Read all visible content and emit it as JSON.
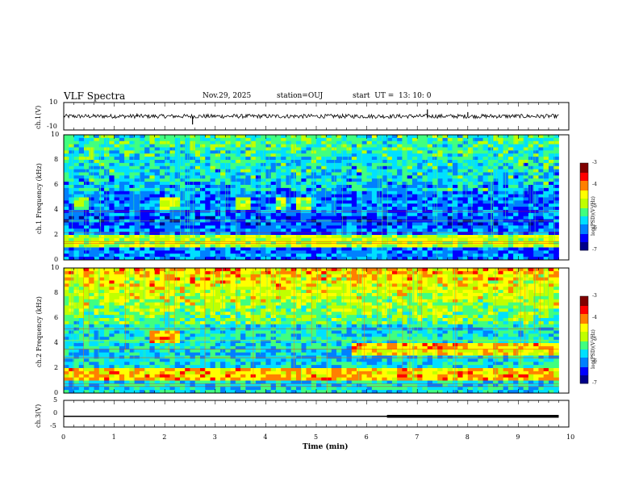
{
  "header": {
    "title": "VLF Spectra",
    "date": "Nov.29, 2025",
    "station": "station=OUJ",
    "start_label": "start  UT =",
    "start_time": "13: 10: 0"
  },
  "chart_data": [
    {
      "type": "line",
      "name": "ch1-waveform",
      "ylabel": "ch.1(V)",
      "ylim": [
        -10,
        10
      ],
      "yticks": [
        "10",
        "-10"
      ],
      "baseline_value": 0,
      "noise_amplitude": 1.5,
      "spikes": [
        {
          "t": 2.55,
          "v": -6
        },
        {
          "t": 7.2,
          "v": 5
        },
        {
          "t": 8.0,
          "v": 3
        },
        {
          "t": 1.45,
          "v": 2
        }
      ]
    },
    {
      "type": "heatmap",
      "name": "ch1-spectrogram",
      "ylabel": "ch.1 Frequency (kHz)",
      "ylim": [
        0,
        10
      ],
      "yticks": [
        "0",
        "2",
        "4",
        "6",
        "8",
        "10"
      ],
      "emission_bands_khz": [
        {
          "f": 1.5,
          "t0": 0.0,
          "t1": 9.8
        },
        {
          "f": 4.5,
          "t0": 0.2,
          "t1": 0.5
        },
        {
          "f": 4.5,
          "t0": 1.9,
          "t1": 2.3
        },
        {
          "f": 4.5,
          "t0": 3.4,
          "t1": 3.7
        },
        {
          "f": 4.5,
          "t0": 4.2,
          "t1": 4.4
        },
        {
          "f": 4.5,
          "t0": 4.6,
          "t1": 4.9
        }
      ],
      "colorbar_label": "log(PSD)(V²/Hz)",
      "colorbar_range": [
        -7,
        -3
      ],
      "colorbar_ticks": [
        "-3",
        "-4",
        "-5",
        "-6",
        "-7"
      ]
    },
    {
      "type": "heatmap",
      "name": "ch2-spectrogram",
      "ylabel": "ch.2 Frequency (kHz)",
      "ylim": [
        0,
        10
      ],
      "yticks": [
        "0",
        "2",
        "4",
        "6",
        "8",
        "10"
      ],
      "emission_bands_khz": [
        {
          "f": 1.5,
          "t0": 0.0,
          "t1": 9.8
        },
        {
          "f": 4.5,
          "t0": 1.7,
          "t1": 2.3
        },
        {
          "f": 3.5,
          "t0": 5.7,
          "t1": 9.8
        }
      ],
      "colorbar_label": "log(PSD)(V²/Hz)",
      "colorbar_range": [
        -7,
        -3
      ],
      "colorbar_ticks": [
        "-3",
        "-4",
        "-5",
        "-6",
        "-7"
      ]
    },
    {
      "type": "line",
      "name": "ch3-trace",
      "ylabel": "ch.3(V)",
      "ylim": [
        -5,
        5
      ],
      "yticks": [
        "5",
        "0",
        "-5"
      ],
      "level_value": -1,
      "thick_from_min": 6.4,
      "t_end_min": 9.8
    }
  ],
  "xaxis": {
    "label": "Time  (min)",
    "range": [
      0,
      10
    ],
    "ticks": [
      "0",
      "1",
      "2",
      "3",
      "4",
      "5",
      "6",
      "7",
      "8",
      "9",
      "10"
    ]
  },
  "colors": {
    "cmap": [
      "#00008a",
      "#0000ff",
      "#0080ff",
      "#00e0ff",
      "#40ff80",
      "#c0ff00",
      "#ffff00",
      "#ff8000",
      "#ff0000",
      "#800000"
    ]
  }
}
